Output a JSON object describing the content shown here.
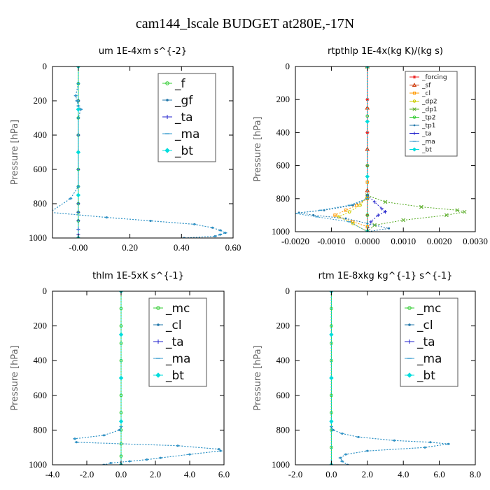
{
  "figure": {
    "title": "cam144_lscale  BUDGET at280E,-17N"
  },
  "chart_data": [
    {
      "id": "um",
      "type": "line",
      "title": "um   1E-4xm s^{-2}",
      "ylabel": "Pressure [hPa]",
      "xlabel": "",
      "xlim": [
        -0.1,
        0.6
      ],
      "ylim": [
        1000,
        0
      ],
      "xticks": [
        -0.0,
        0.2,
        0.4,
        0.6
      ],
      "xtick_labels": [
        "-0.00",
        "0.20",
        "0.40",
        "0.60"
      ],
      "yticks": [
        0,
        200,
        400,
        600,
        800,
        1000
      ],
      "ytick_labels": [
        "0",
        "200",
        "400",
        "600",
        "800",
        "1000"
      ],
      "legend": {
        "position": "top-right",
        "size": "large"
      },
      "series": [
        {
          "name": "_f",
          "color": "#33cc33",
          "marker": "circle",
          "x": [
            0,
            0,
            0,
            0,
            0,
            0,
            0,
            0,
            0,
            0,
            0,
            0
          ],
          "y": [
            0,
            100,
            200,
            300,
            400,
            500,
            600,
            700,
            800,
            850,
            900,
            1000
          ]
        },
        {
          "name": "_gf",
          "color": "#2277aa",
          "marker": "dot",
          "x": [
            0,
            0,
            -0.01,
            -0.005,
            0.0,
            0.01,
            0.0,
            0.0,
            -0.03,
            -0.11,
            0.11,
            0.28,
            0.45,
            0.52,
            0.55,
            0.57,
            0.55,
            0.53,
            0.41
          ],
          "y": [
            0,
            100,
            170,
            200,
            230,
            250,
            300,
            700,
            770,
            850,
            880,
            900,
            920,
            940,
            955,
            970,
            980,
            990,
            1000
          ]
        },
        {
          "name": "_ta",
          "color": "#2222cc",
          "marker": "plus",
          "x": [
            0,
            0,
            0,
            0,
            0,
            0,
            0,
            0,
            0,
            0
          ],
          "y": [
            0,
            200,
            400,
            600,
            800,
            850,
            900,
            950,
            980,
            1000
          ]
        },
        {
          "name": "_ma",
          "color": "#3399cc",
          "marker": "dash",
          "x": [
            0,
            0,
            -0.01,
            -0.005,
            0.0,
            0.01,
            0.0,
            0.0,
            -0.03,
            -0.11,
            0.11,
            0.28,
            0.45,
            0.52,
            0.55,
            0.57,
            0.55,
            0.53,
            0.41
          ],
          "y": [
            0,
            100,
            170,
            200,
            230,
            250,
            300,
            700,
            770,
            850,
            880,
            900,
            920,
            940,
            955,
            970,
            980,
            990,
            1000
          ]
        },
        {
          "name": "_bt",
          "color": "#00dddd",
          "marker": "diamond",
          "x": [
            0,
            0,
            0,
            0,
            0
          ],
          "y": [
            0,
            250,
            500,
            750,
            1000
          ]
        }
      ]
    },
    {
      "id": "rtpthlp",
      "type": "line",
      "title": "rtpthlp   1E-4x(kg K)/(kg s)",
      "ylabel": "Pressure [hPa]",
      "xlabel": "",
      "xlim": [
        -0.002,
        0.003
      ],
      "ylim": [
        1000,
        0
      ],
      "xticks": [
        -0.002,
        -0.001,
        0.0,
        0.001,
        0.002,
        0.003
      ],
      "xtick_labels": [
        "-0.0020",
        "-0.0010",
        "0.0000",
        "0.0010",
        "0.0020",
        "0.0030"
      ],
      "yticks": [
        0,
        200,
        400,
        600,
        800,
        1000
      ],
      "ytick_labels": [
        "0",
        "200",
        "400",
        "600",
        "800",
        "1000"
      ],
      "legend": {
        "position": "top-right",
        "size": "small"
      },
      "series": [
        {
          "name": "_forcing",
          "color": "#ee2222",
          "marker": "asterisk",
          "x": [
            0,
            0,
            0,
            0,
            0,
            0,
            0
          ],
          "y": [
            0,
            200,
            400,
            600,
            800,
            900,
            1000
          ]
        },
        {
          "name": "_sf",
          "color": "#cc3300",
          "marker": "triangle",
          "x": [
            0,
            0,
            0,
            0,
            0
          ],
          "y": [
            0,
            250,
            500,
            750,
            1000
          ]
        },
        {
          "name": "_cl",
          "color": "#ff9900",
          "marker": "square",
          "x": [
            0,
            0,
            0.0,
            -0.0003,
            -0.0006,
            -0.0009,
            -0.0004,
            0.0,
            0.0
          ],
          "y": [
            0,
            700,
            800,
            840,
            870,
            900,
            940,
            970,
            1000
          ]
        },
        {
          "name": "_dp2",
          "color": "#cccc00",
          "marker": "circle",
          "x": [
            0,
            0,
            -0.0002,
            -0.0005,
            -0.0008,
            -0.0004,
            0.0
          ],
          "y": [
            0,
            780,
            840,
            880,
            910,
            950,
            1000
          ]
        },
        {
          "name": "_dp1",
          "color": "#55aa22",
          "marker": "cross",
          "x": [
            0,
            0,
            0.0005,
            0.0015,
            0.0025,
            0.0027,
            0.0022,
            0.001,
            0.0002,
            0.0
          ],
          "y": [
            0,
            780,
            820,
            850,
            870,
            880,
            900,
            930,
            960,
            1000
          ]
        },
        {
          "name": "_tp2",
          "color": "#33cc33",
          "marker": "circle",
          "x": [
            0,
            0,
            0.0,
            0.0,
            0.0
          ],
          "y": [
            0,
            300,
            600,
            900,
            1000
          ]
        },
        {
          "name": "_tp1",
          "color": "#2277aa",
          "marker": "dot",
          "x": [
            0,
            0,
            -0.0004,
            -0.0012,
            -0.0019,
            -0.0015,
            -0.0006,
            0.0,
            0.0006,
            0.0
          ],
          "y": [
            0,
            800,
            840,
            870,
            885,
            900,
            920,
            950,
            980,
            1000
          ]
        },
        {
          "name": "_ta",
          "color": "#2222cc",
          "marker": "plus",
          "x": [
            0,
            0,
            0.0002,
            0.0004,
            0.0005,
            0.0003,
            0.0001,
            0.0
          ],
          "y": [
            0,
            780,
            820,
            860,
            880,
            900,
            940,
            1000
          ]
        },
        {
          "name": "_ma",
          "color": "#3399cc",
          "marker": "dash",
          "x": [
            0,
            0,
            -0.0005,
            -0.0013,
            -0.002,
            -0.0014,
            -0.0005,
            0.0
          ],
          "y": [
            0,
            800,
            840,
            870,
            890,
            910,
            940,
            1000
          ]
        },
        {
          "name": "_bt",
          "color": "#00dddd",
          "marker": "diamond",
          "x": [
            0,
            0,
            0,
            0
          ],
          "y": [
            0,
            333,
            666,
            1000
          ]
        }
      ]
    },
    {
      "id": "thlm",
      "type": "line",
      "title": "thlm   1E-5xK s^{-1}",
      "ylabel": "Pressure [hPa]",
      "xlabel": "",
      "xlim": [
        -4.0,
        6.0
      ],
      "ylim": [
        1000,
        0
      ],
      "xticks": [
        -4.0,
        -2.0,
        0.0,
        2.0,
        4.0,
        6.0
      ],
      "xtick_labels": [
        "-4.0",
        "-2.0",
        "0.0",
        "2.0",
        "4.0",
        "6.0"
      ],
      "yticks": [
        0,
        200,
        400,
        600,
        800,
        1000
      ],
      "ytick_labels": [
        "0",
        "200",
        "400",
        "600",
        "800",
        "1000"
      ],
      "legend": {
        "position": "top-right",
        "size": "large"
      },
      "series": [
        {
          "name": "_mc",
          "color": "#33cc33",
          "marker": "circle",
          "x": [
            0,
            0,
            0,
            0,
            0,
            0,
            0,
            0,
            0,
            0,
            0,
            0
          ],
          "y": [
            0,
            100,
            200,
            300,
            400,
            500,
            600,
            700,
            800,
            880,
            950,
            1000
          ]
        },
        {
          "name": "_cl",
          "color": "#2277aa",
          "marker": "dot",
          "x": [
            0,
            0,
            -0.1,
            -1.0,
            -2.7,
            -2.6,
            3.3,
            5.7,
            5.8,
            4.0,
            2.3,
            1.5,
            0.5,
            -0.6,
            -1.0
          ],
          "y": [
            0,
            780,
            800,
            830,
            850,
            870,
            890,
            910,
            920,
            940,
            960,
            970,
            980,
            990,
            1000
          ]
        },
        {
          "name": "_ta",
          "color": "#2222cc",
          "marker": "plus",
          "x": [
            0,
            0,
            0,
            0,
            0
          ],
          "y": [
            0,
            250,
            500,
            750,
            1000
          ]
        },
        {
          "name": "_ma",
          "color": "#3399cc",
          "marker": "dash",
          "x": [
            0,
            0,
            -0.1,
            -1.0,
            -2.7,
            -2.6,
            3.3,
            5.7,
            5.8,
            4.0,
            2.3,
            1.5,
            0.5,
            -0.6,
            -1.0
          ],
          "y": [
            0,
            780,
            800,
            830,
            850,
            870,
            890,
            910,
            920,
            940,
            960,
            970,
            980,
            990,
            1000
          ]
        },
        {
          "name": "_bt",
          "color": "#00dddd",
          "marker": "diamond",
          "x": [
            0,
            0,
            0,
            0,
            0
          ],
          "y": [
            0,
            250,
            500,
            750,
            1000
          ]
        }
      ]
    },
    {
      "id": "rtm",
      "type": "line",
      "title": "rtm   1E-8xkg kg^{-1} s^{-1}",
      "ylabel": "Pressure [hPa]",
      "xlabel": "",
      "xlim": [
        -2.0,
        8.0
      ],
      "ylim": [
        1000,
        0
      ],
      "xticks": [
        -2.0,
        0.0,
        2.0,
        4.0,
        6.0,
        8.0
      ],
      "xtick_labels": [
        "-2.0",
        "0.0",
        "2.0",
        "4.0",
        "6.0",
        "8.0"
      ],
      "yticks": [
        0,
        200,
        400,
        600,
        800,
        1000
      ],
      "ytick_labels": [
        "0",
        "200",
        "400",
        "600",
        "800",
        "1000"
      ],
      "legend": {
        "position": "top-right",
        "size": "large"
      },
      "series": [
        {
          "name": "_mc",
          "color": "#33cc33",
          "marker": "circle",
          "x": [
            0,
            0,
            0,
            0,
            0,
            0,
            0,
            0,
            0,
            0,
            0
          ],
          "y": [
            0,
            100,
            200,
            300,
            400,
            500,
            600,
            700,
            800,
            900,
            1000
          ]
        },
        {
          "name": "_cl",
          "color": "#2277aa",
          "marker": "dot",
          "x": [
            0,
            0,
            0.1,
            0.6,
            1.5,
            3.5,
            5.5,
            6.5,
            5.2,
            2.0,
            0.8,
            0.5,
            0.6,
            0.9
          ],
          "y": [
            0,
            780,
            800,
            820,
            840,
            860,
            870,
            880,
            900,
            920,
            940,
            960,
            980,
            1000
          ]
        },
        {
          "name": "_ta",
          "color": "#2222cc",
          "marker": "plus",
          "x": [
            0,
            0,
            0,
            0,
            0
          ],
          "y": [
            0,
            250,
            500,
            750,
            1000
          ]
        },
        {
          "name": "_ma",
          "color": "#3399cc",
          "marker": "dash",
          "x": [
            0,
            0,
            0.1,
            0.6,
            1.5,
            3.5,
            5.5,
            6.5,
            5.2,
            2.0,
            0.8,
            0.5,
            0.6,
            0.9
          ],
          "y": [
            0,
            780,
            800,
            820,
            840,
            860,
            870,
            880,
            900,
            920,
            940,
            960,
            980,
            1000
          ]
        },
        {
          "name": "_bt",
          "color": "#00dddd",
          "marker": "diamond",
          "x": [
            0,
            0,
            0,
            0,
            0
          ],
          "y": [
            0,
            250,
            500,
            750,
            1000
          ]
        }
      ]
    }
  ]
}
